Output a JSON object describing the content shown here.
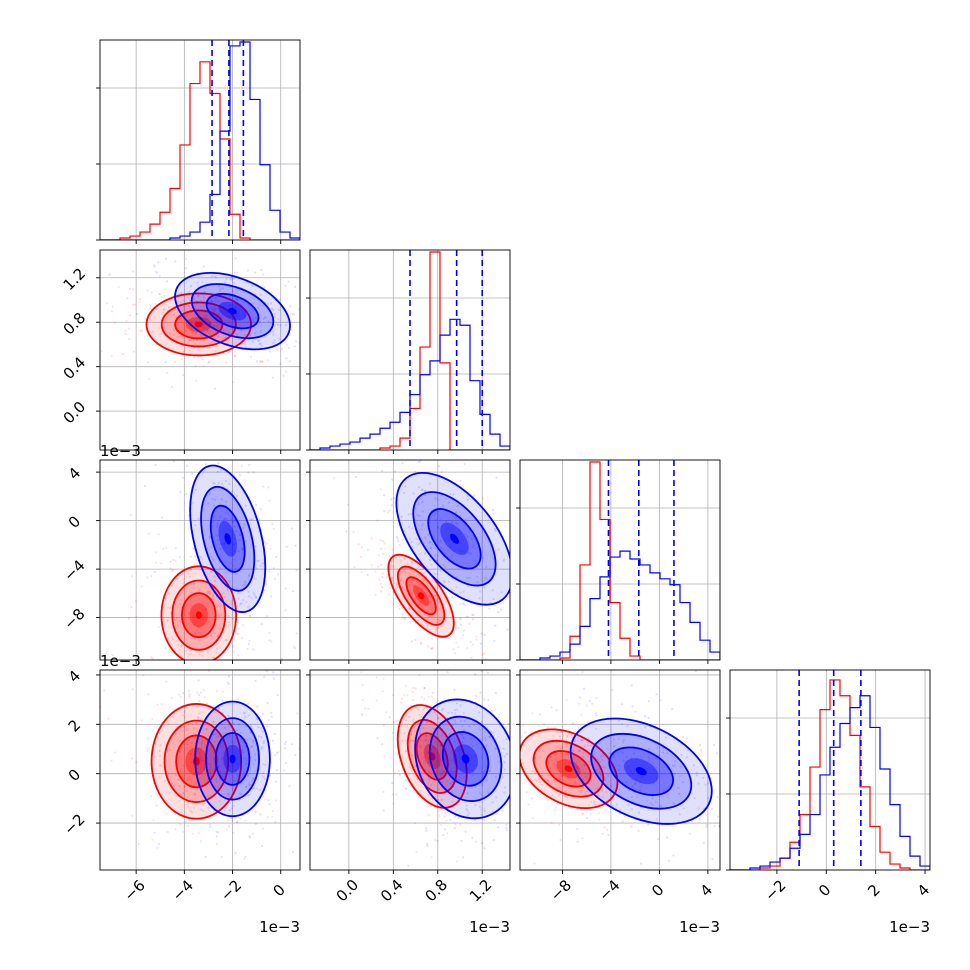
{
  "colors": {
    "red": "#ff0000",
    "blue": "#0000ff",
    "grid": "#b0b0b0",
    "frame": "#000000"
  },
  "offset_text": "1e−3",
  "chart_data": {
    "type": "corner",
    "n_params": 4,
    "grid": true,
    "series": [
      {
        "color": "red",
        "params": [
          {
            "hist": [
              0,
              0,
              1,
              2,
              4,
              8,
              14,
              26,
              48,
              79,
              90,
              74,
              51,
              13,
              1,
              0,
              0,
              0,
              0,
              0
            ]
          },
          {
            "hist": [
              0,
              0,
              0,
              0,
              0,
              0,
              0,
              1,
              2,
              6,
              21,
              52,
              100,
              44,
              0,
              0,
              0,
              0,
              0,
              0
            ]
          },
          {
            "hist": [
              0,
              0,
              0,
              0,
              1,
              12,
              48,
              100,
              71,
              29,
              11,
              2,
              0,
              0,
              0,
              0,
              0,
              0,
              0,
              0
            ]
          },
          {
            "hist": [
              0,
              0,
              0,
              1,
              2,
              6,
              14,
              28,
              52,
              81,
              96,
              88,
              68,
              42,
              22,
              9,
              3,
              1,
              0,
              0
            ]
          }
        ],
        "pairs": [
          {
            "row": 1,
            "col": 0,
            "center": [
              -3.4,
              0.78
            ],
            "rx": 1.4,
            "ry": 0.18,
            "angle": 0
          },
          {
            "row": 2,
            "col": 0,
            "center": [
              -3.4,
              -7.8
            ],
            "rx": 1.0,
            "ry": 2.6,
            "angle": 0
          },
          {
            "row": 2,
            "col": 1,
            "center": [
              0.65,
              -6.2
            ],
            "rx": 0.28,
            "ry": 1.1,
            "angle": -0.95
          },
          {
            "row": 3,
            "col": 0,
            "center": [
              -3.5,
              0.5
            ],
            "rx": 1.2,
            "ry": 1.5,
            "angle": 0
          },
          {
            "row": 3,
            "col": 1,
            "center": [
              0.75,
              0.7
            ],
            "rx": 0.18,
            "ry": 1.4,
            "angle": 0.35
          },
          {
            "row": 3,
            "col": 2,
            "center": [
              -7.5,
              0.2
            ],
            "rx": 2.8,
            "ry": 0.9,
            "angle": -0.5
          }
        ]
      },
      {
        "color": "blue",
        "params": [
          {
            "hist": [
              0,
              0,
              0,
              0,
              0,
              0,
              0,
              1,
              2,
              4,
              9,
              23,
              55,
              98,
              100,
              71,
              38,
              15,
              4,
              1
            ]
          },
          {
            "hist": [
              0,
              1,
              2,
              3,
              4,
              6,
              8,
              11,
              14,
              19,
              28,
              38,
              45,
              58,
              66,
              63,
              35,
              18,
              8,
              2
            ]
          },
          {
            "hist": [
              0,
              0,
              1,
              2,
              4,
              8,
              17,
              31,
              42,
              52,
              55,
              51,
              48,
              44,
              41,
              38,
              29,
              19,
              10,
              4
            ]
          },
          {
            "hist": [
              0,
              0,
              1,
              2,
              4,
              6,
              11,
              18,
              28,
              48,
              62,
              74,
              82,
              88,
              72,
              51,
              33,
              17,
              7,
              2
            ]
          }
        ],
        "pairs": [
          {
            "row": 1,
            "col": 0,
            "center": [
              -2.0,
              0.9
            ],
            "rx": 0.9,
            "ry": 0.35,
            "angle": 1.2
          },
          {
            "row": 2,
            "col": 0,
            "center": [
              -2.2,
              -1.5
            ],
            "rx": 0.9,
            "ry": 4.0,
            "angle": 0.25
          },
          {
            "row": 2,
            "col": 1,
            "center": [
              0.95,
              -1.5
            ],
            "rx": 0.45,
            "ry": 2.2,
            "angle": -0.9
          },
          {
            "row": 3,
            "col": 0,
            "center": [
              -2.0,
              0.6
            ],
            "rx": 1.0,
            "ry": 1.5,
            "angle": 0
          },
          {
            "row": 3,
            "col": 1,
            "center": [
              1.05,
              0.6
            ],
            "rx": 0.28,
            "ry": 1.6,
            "angle": 0.4
          },
          {
            "row": 3,
            "col": 2,
            "center": [
              -1.5,
              0.1
            ],
            "rx": 4.0,
            "ry": 1.2,
            "angle": -0.45
          }
        ]
      }
    ],
    "quantiles": [
      {
        "param": 0,
        "color": "blue",
        "values": [
          -2.85,
          -2.15,
          -1.55
        ]
      },
      {
        "param": 1,
        "color": "blue",
        "values": [
          0.55,
          0.97,
          1.2
        ]
      },
      {
        "param": 2,
        "color": "blue",
        "values": [
          -4.2,
          -1.7,
          1.2
        ]
      },
      {
        "param": 3,
        "color": "blue",
        "values": [
          -1.1,
          0.3,
          1.4
        ]
      }
    ],
    "axes": [
      {
        "range": [
          -7.5,
          0.8
        ],
        "ticks": [
          -6,
          -4,
          -2,
          0
        ],
        "tick_labels": [
          "−6",
          "−4",
          "−2",
          "0"
        ],
        "offset": "1e−3"
      },
      {
        "range": [
          -0.35,
          1.45
        ],
        "ticks": [
          0.0,
          0.4,
          0.8,
          1.2
        ],
        "tick_labels": [
          "0.0",
          "0.4",
          "0.8",
          "1.2"
        ],
        "offset": "1e−3"
      },
      {
        "range": [
          -11.5,
          5.0
        ],
        "ticks": [
          -8,
          -4,
          0,
          4
        ],
        "tick_labels": [
          "−8",
          "−4",
          "0",
          "4"
        ],
        "offset": "1e−3"
      },
      {
        "range": [
          -3.9,
          4.2
        ],
        "ticks": [
          -2,
          0,
          2,
          4
        ],
        "tick_labels": [
          "−2",
          "0",
          "2",
          "4"
        ],
        "offset": "1e−3"
      }
    ]
  }
}
